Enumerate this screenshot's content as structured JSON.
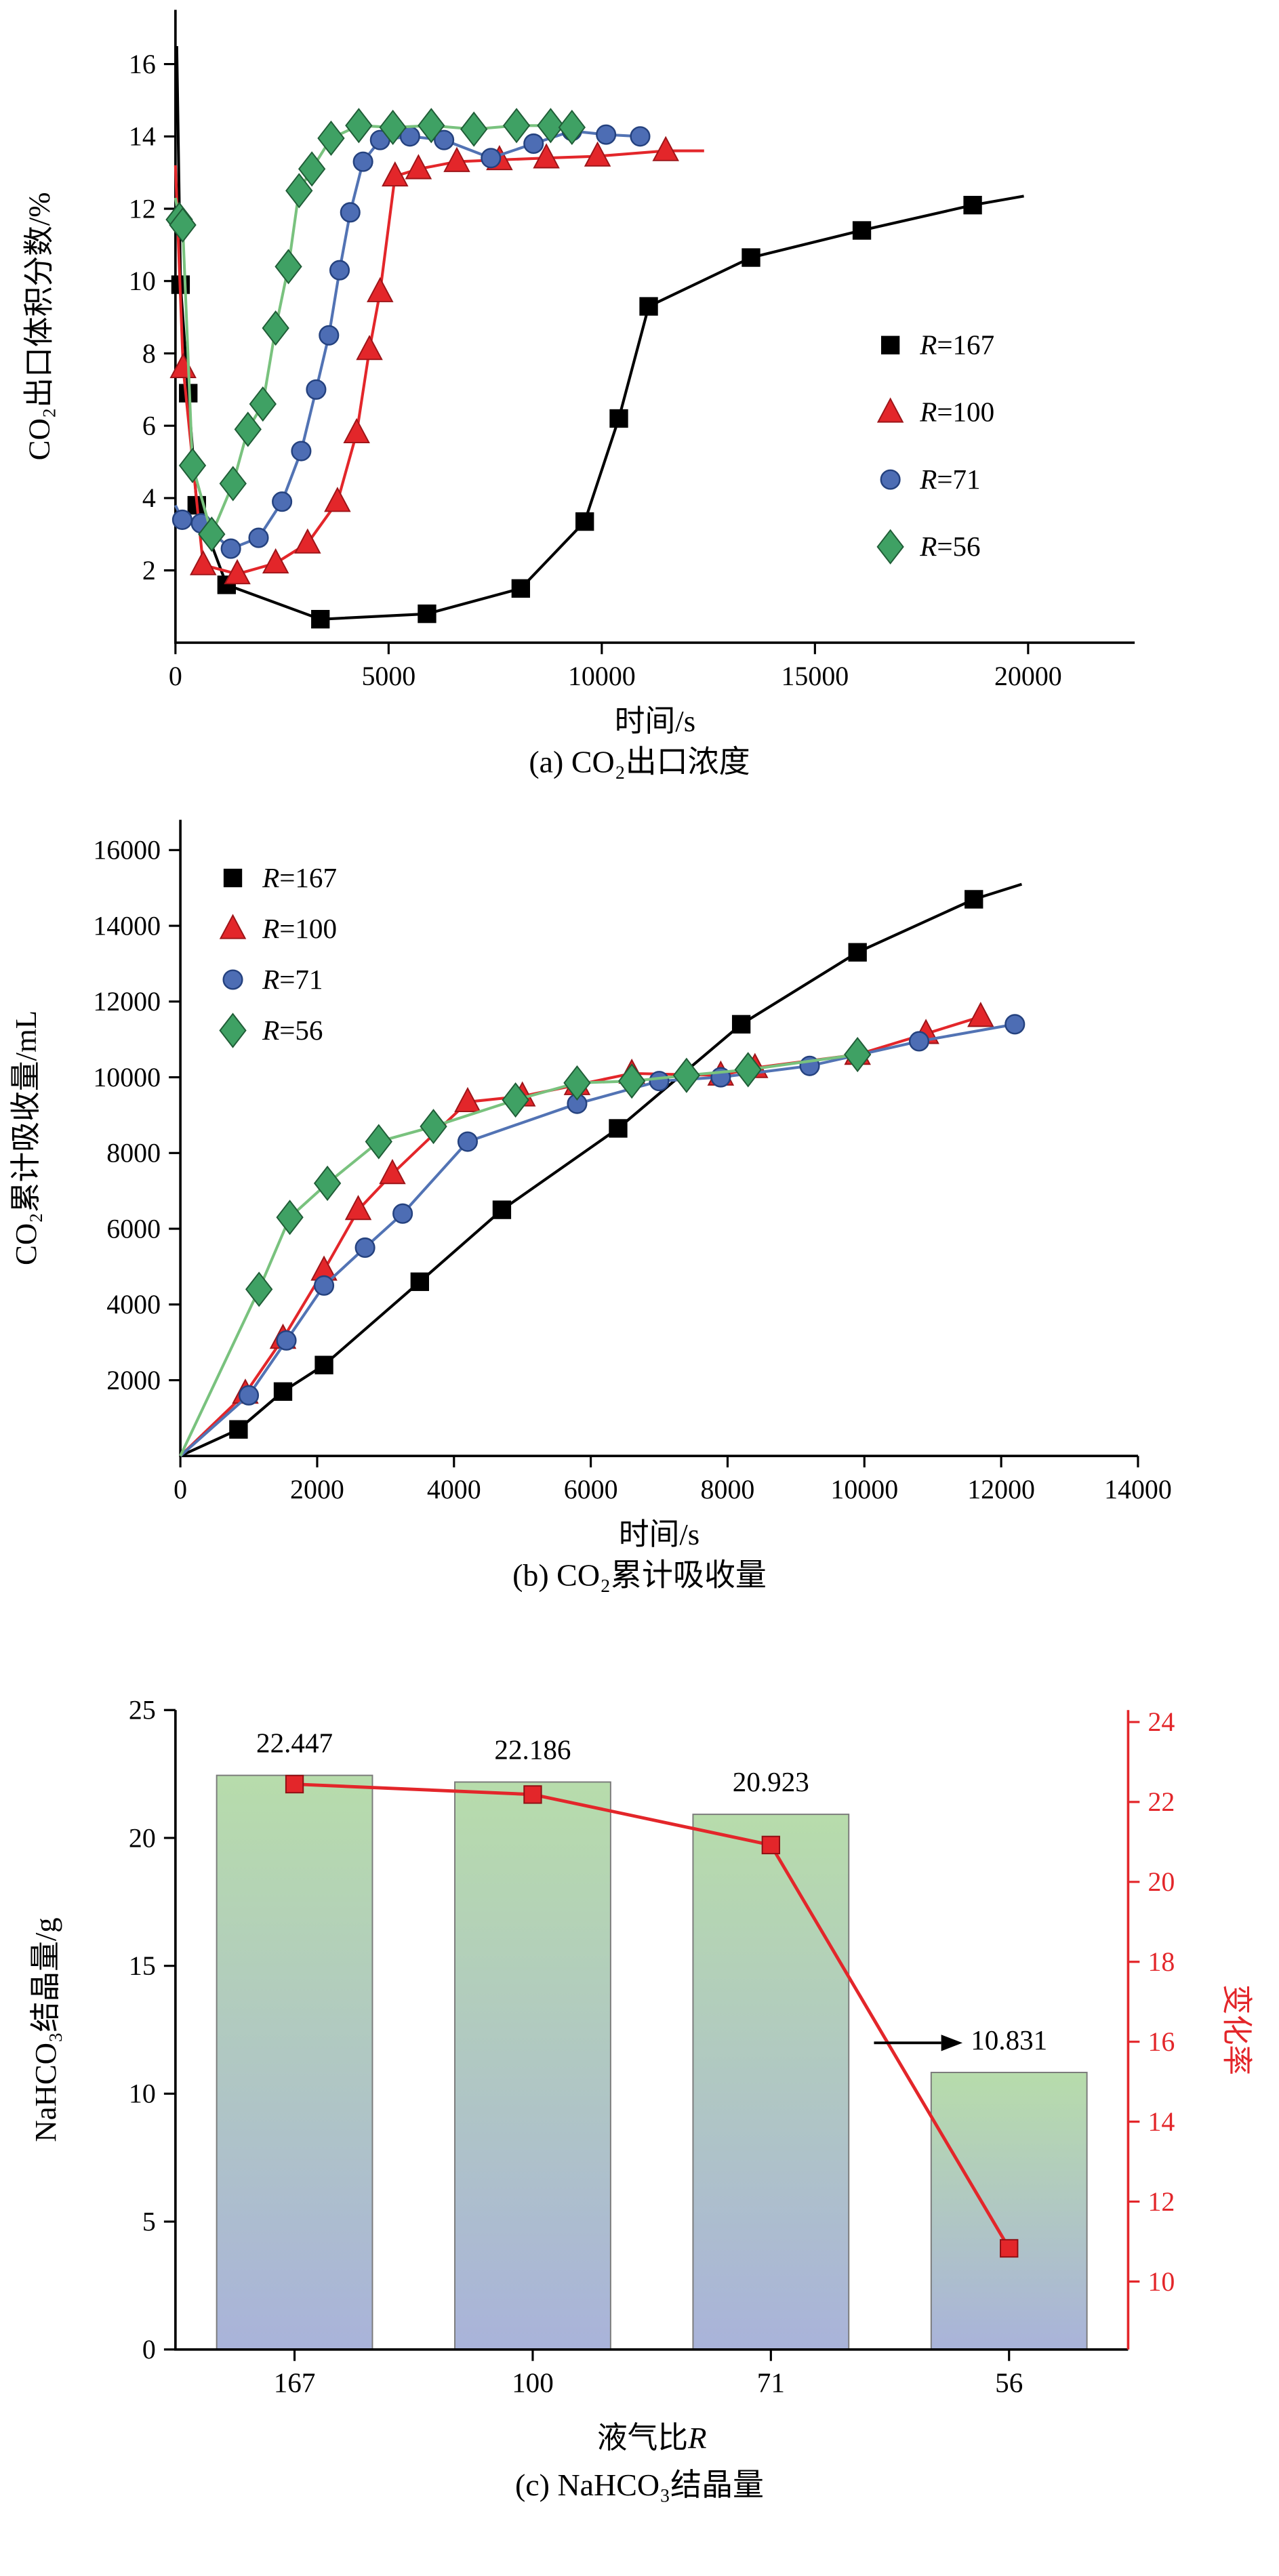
{
  "figure": {
    "captions": {
      "a": "(a) CO₂出口浓度",
      "b": "(b) CO₂累计吸收量",
      "c": "(c) NaHCO₃结晶量"
    }
  },
  "chart_data": [
    {
      "id": "a",
      "type": "line",
      "xlabel": "时间/s",
      "ylabel": "CO₂出口体积分数/%",
      "xlim": [
        0,
        22500
      ],
      "ylim": [
        0,
        17.5
      ],
      "xticks": [
        0,
        5000,
        10000,
        15000,
        20000
      ],
      "yticks": [
        2,
        4,
        6,
        8,
        10,
        12,
        14,
        16
      ],
      "legend_position": "right-center",
      "series": [
        {
          "name": "R=167",
          "marker": "square",
          "line_color": "#000000",
          "marker_fill": "#000000",
          "marker_stroke": "#000000",
          "head": [
            30,
            16.5
          ],
          "points": [
            [
              120,
              9.9
            ],
            [
              300,
              6.9
            ],
            [
              500,
              3.8
            ],
            [
              1200,
              1.6
            ],
            [
              3400,
              0.65
            ],
            [
              5900,
              0.8
            ],
            [
              8100,
              1.5
            ],
            [
              9600,
              3.35
            ],
            [
              10400,
              6.2
            ],
            [
              11100,
              9.3
            ],
            [
              13500,
              10.65
            ],
            [
              16100,
              11.4
            ],
            [
              18700,
              12.1
            ]
          ],
          "tail": [
            19900,
            12.35
          ]
        },
        {
          "name": "R=100",
          "marker": "triangle",
          "line_color": "#e3262a",
          "marker_fill": "#e3262a",
          "marker_stroke": "#9c1418",
          "head": [
            0,
            13.2
          ],
          "points": [
            [
              180,
              7.6
            ],
            [
              650,
              2.15
            ],
            [
              1450,
              1.9
            ],
            [
              2350,
              2.2
            ],
            [
              3100,
              2.75
            ],
            [
              3800,
              3.9
            ],
            [
              4250,
              5.8
            ],
            [
              4550,
              8.1
            ],
            [
              4800,
              9.7
            ],
            [
              5150,
              12.9
            ],
            [
              5700,
              13.1
            ],
            [
              6600,
              13.3
            ],
            [
              7600,
              13.35
            ],
            [
              8700,
              13.4
            ],
            [
              9900,
              13.45
            ],
            [
              11500,
              13.6
            ]
          ],
          "tail": [
            12400,
            13.6
          ]
        },
        {
          "name": "R=71",
          "marker": "circle",
          "line_color": "#5273b4",
          "marker_fill": "#4d6db4",
          "marker_stroke": "#24417e",
          "head": [
            0,
            3.8
          ],
          "points": [
            [
              160,
              3.4
            ],
            [
              600,
              3.3
            ],
            [
              1300,
              2.6
            ],
            [
              1950,
              2.9
            ],
            [
              2500,
              3.9
            ],
            [
              2950,
              5.3
            ],
            [
              3300,
              7.0
            ],
            [
              3600,
              8.5
            ],
            [
              3850,
              10.3
            ],
            [
              4100,
              11.9
            ],
            [
              4400,
              13.3
            ],
            [
              4800,
              13.9
            ],
            [
              5500,
              14.0
            ],
            [
              6300,
              13.9
            ],
            [
              7400,
              13.4
            ],
            [
              8400,
              13.8
            ],
            [
              9300,
              14.15
            ],
            [
              10100,
              14.05
            ],
            [
              10900,
              14.0
            ]
          ]
        },
        {
          "name": "R=56",
          "marker": "diamond",
          "line_color": "#79c27e",
          "marker_fill": "#3fa164",
          "marker_stroke": "#1f5c36",
          "head": [
            0,
            12.3
          ],
          "points": [
            [
              90,
              11.7
            ],
            [
              170,
              11.55
            ],
            [
              400,
              4.9
            ],
            [
              850,
              3.0
            ],
            [
              1350,
              4.4
            ],
            [
              1700,
              5.9
            ],
            [
              2050,
              6.6
            ],
            [
              2350,
              8.7
            ],
            [
              2650,
              10.4
            ],
            [
              2900,
              12.5
            ],
            [
              3200,
              13.1
            ],
            [
              3650,
              13.95
            ],
            [
              4300,
              14.3
            ],
            [
              5100,
              14.25
            ],
            [
              6000,
              14.3
            ],
            [
              7000,
              14.2
            ],
            [
              8000,
              14.3
            ],
            [
              8800,
              14.3
            ],
            [
              9300,
              14.25
            ]
          ]
        }
      ]
    },
    {
      "id": "b",
      "type": "line",
      "xlabel": "时间/s",
      "ylabel": "CO₂累计吸收量/mL",
      "xlim": [
        0,
        14000
      ],
      "ylim": [
        0,
        16800
      ],
      "xticks": [
        0,
        2000,
        4000,
        6000,
        8000,
        10000,
        12000,
        14000
      ],
      "yticks": [
        2000,
        4000,
        6000,
        8000,
        10000,
        12000,
        14000,
        16000
      ],
      "legend_position": "upper-left",
      "series": [
        {
          "name": "R=167",
          "marker": "square",
          "line_color": "#000000",
          "marker_fill": "#000000",
          "marker_stroke": "#000000",
          "head": [
            0,
            0
          ],
          "points": [
            [
              850,
              700
            ],
            [
              1500,
              1700
            ],
            [
              2100,
              2400
            ],
            [
              3500,
              4600
            ],
            [
              4700,
              6500
            ],
            [
              6400,
              8650
            ],
            [
              8200,
              11400
            ],
            [
              9900,
              13300
            ],
            [
              11600,
              14700
            ]
          ],
          "tail": [
            12300,
            15100
          ]
        },
        {
          "name": "R=100",
          "marker": "triangle",
          "line_color": "#e3262a",
          "marker_fill": "#e3262a",
          "marker_stroke": "#9c1418",
          "head": [
            0,
            0
          ],
          "points": [
            [
              950,
              1650
            ],
            [
              1500,
              3100
            ],
            [
              2100,
              4900
            ],
            [
              2600,
              6500
            ],
            [
              3100,
              7450
            ],
            [
              4200,
              9350
            ],
            [
              5000,
              9500
            ],
            [
              5800,
              9800
            ],
            [
              6600,
              10100
            ],
            [
              7900,
              10050
            ],
            [
              8400,
              10250
            ],
            [
              9900,
              10600
            ],
            [
              10900,
              11150
            ],
            [
              11700,
              11600
            ]
          ]
        },
        {
          "name": "R=71",
          "marker": "circle",
          "line_color": "#5273b4",
          "marker_fill": "#4d6db4",
          "marker_stroke": "#24417e",
          "head": [
            0,
            0
          ],
          "points": [
            [
              1000,
              1600
            ],
            [
              1550,
              3050
            ],
            [
              2100,
              4500
            ],
            [
              2700,
              5500
            ],
            [
              3250,
              6400
            ],
            [
              4200,
              8300
            ],
            [
              5800,
              9300
            ],
            [
              7000,
              9900
            ],
            [
              7900,
              10000
            ],
            [
              9200,
              10300
            ],
            [
              10800,
              10950
            ],
            [
              12200,
              11400
            ]
          ]
        },
        {
          "name": "R=56",
          "marker": "diamond",
          "line_color": "#79c27e",
          "marker_fill": "#3fa164",
          "marker_stroke": "#1f5c36",
          "head": [
            0,
            0
          ],
          "points": [
            [
              1150,
              4400
            ],
            [
              1600,
              6300
            ],
            [
              2150,
              7200
            ],
            [
              2900,
              8300
            ],
            [
              3700,
              8700
            ],
            [
              4900,
              9400
            ],
            [
              5800,
              9850
            ],
            [
              6600,
              9900
            ],
            [
              7400,
              10050
            ],
            [
              8300,
              10200
            ],
            [
              9900,
              10600
            ]
          ]
        }
      ]
    },
    {
      "id": "c",
      "type": "bar-line",
      "xlabel": "液气比R",
      "ylabel_left": "NaHCO₃结晶量/g",
      "ylabel_right": "变化率",
      "categories": [
        "167",
        "100",
        "71",
        "56"
      ],
      "bar_values": [
        22.447,
        22.186,
        20.923,
        10.831
      ],
      "bar_labels": [
        "22.447",
        "22.186",
        "20.923",
        "10.831"
      ],
      "line_values": [
        22.447,
        22.186,
        20.923,
        10.831
      ],
      "ylim_left": [
        0,
        25
      ],
      "yticks_left": [
        0,
        5,
        10,
        15,
        20,
        25
      ],
      "ylim_right": [
        8.3,
        24.3
      ],
      "yticks_right": [
        10,
        12,
        14,
        16,
        18,
        20,
        22,
        24
      ],
      "line_color": "#e3262a",
      "bar_gradient": [
        "#b7dcab",
        "#a9b3da"
      ],
      "annotation_arrow_to_right_axis": true
    }
  ]
}
